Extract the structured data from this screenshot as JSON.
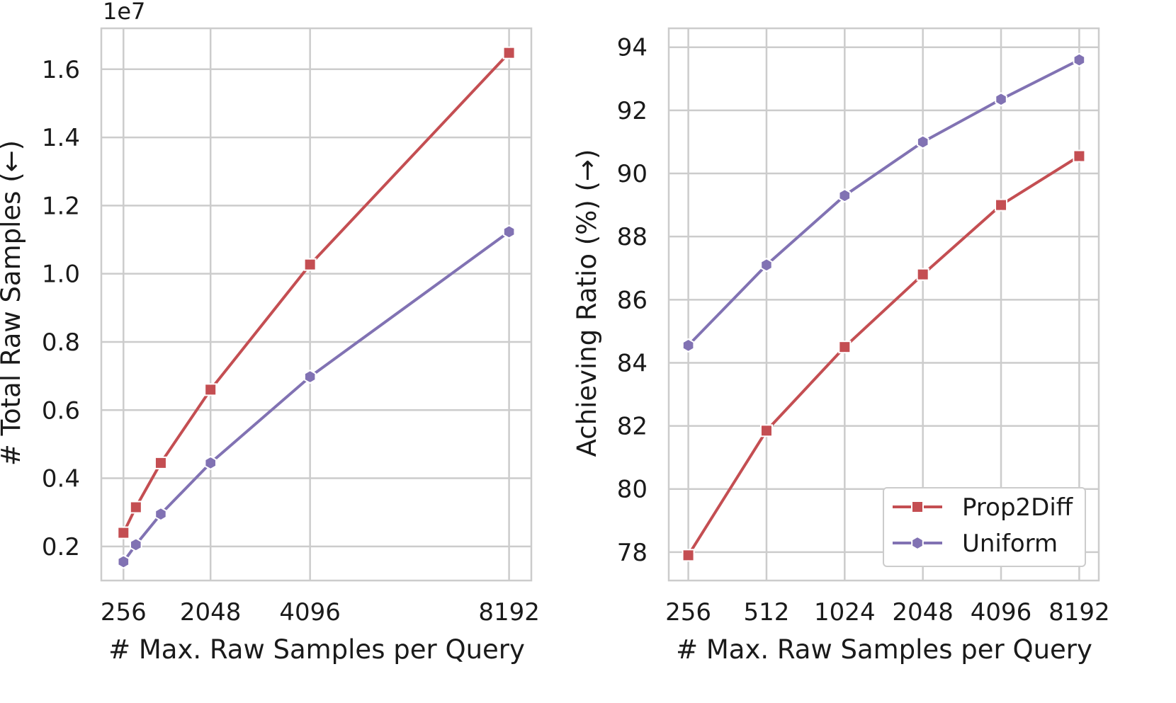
{
  "chart_data": [
    {
      "type": "line",
      "xlabel": "# Max. Raw Samples per Query",
      "ylabel": "# Total Raw Samples (←)",
      "y_offset_label": "1e7",
      "x": [
        256,
        512,
        1024,
        2048,
        4096,
        8192
      ],
      "xticks": [
        256,
        2048,
        4096,
        8192
      ],
      "xtick_labels": [
        "256",
        "2048",
        "4096",
        "8192"
      ],
      "xlim": [
        -200,
        8650
      ],
      "ylim": [
        0.1,
        1.72
      ],
      "yticks": [
        0.2,
        0.4,
        0.6,
        0.8,
        1.0,
        1.2,
        1.4,
        1.6
      ],
      "ytick_labels": [
        "0.2",
        "0.4",
        "0.6",
        "0.8",
        "1.0",
        "1.2",
        "1.4",
        "1.6"
      ],
      "grid": true,
      "series": [
        {
          "name": "Prop2Diff",
          "color": "#c44e52",
          "marker": "square",
          "values": [
            0.24,
            0.315,
            0.445,
            0.66,
            1.027,
            1.648
          ]
        },
        {
          "name": "Uniform",
          "color": "#8172b3",
          "marker": "hexagon",
          "values": [
            0.155,
            0.205,
            0.295,
            0.445,
            0.698,
            1.123
          ]
        }
      ]
    },
    {
      "type": "line",
      "xlabel": "# Max. Raw Samples per Query",
      "ylabel": "Achieving Ratio (%) (→)",
      "x": [
        "256",
        "512",
        "1024",
        "2048",
        "4096",
        "8192"
      ],
      "ylim": [
        77.1,
        94.6
      ],
      "yticks": [
        78,
        80,
        82,
        84,
        86,
        88,
        90,
        92,
        94
      ],
      "ytick_labels": [
        "78",
        "80",
        "82",
        "84",
        "86",
        "88",
        "90",
        "92",
        "94"
      ],
      "grid": true,
      "legend": "lower-right",
      "series": [
        {
          "name": "Prop2Diff",
          "color": "#c44e52",
          "marker": "square",
          "values": [
            77.9,
            81.85,
            84.5,
            86.8,
            89.0,
            90.55
          ]
        },
        {
          "name": "Uniform",
          "color": "#8172b3",
          "marker": "hexagon",
          "values": [
            84.55,
            87.1,
            89.3,
            91.0,
            92.35,
            93.6
          ]
        }
      ]
    }
  ],
  "legend": {
    "entries": [
      "Prop2Diff",
      "Uniform"
    ]
  },
  "style": {
    "grid_color": "#cccccc",
    "spine_color": "#cccccc",
    "text_color": "#1a1a1a"
  }
}
